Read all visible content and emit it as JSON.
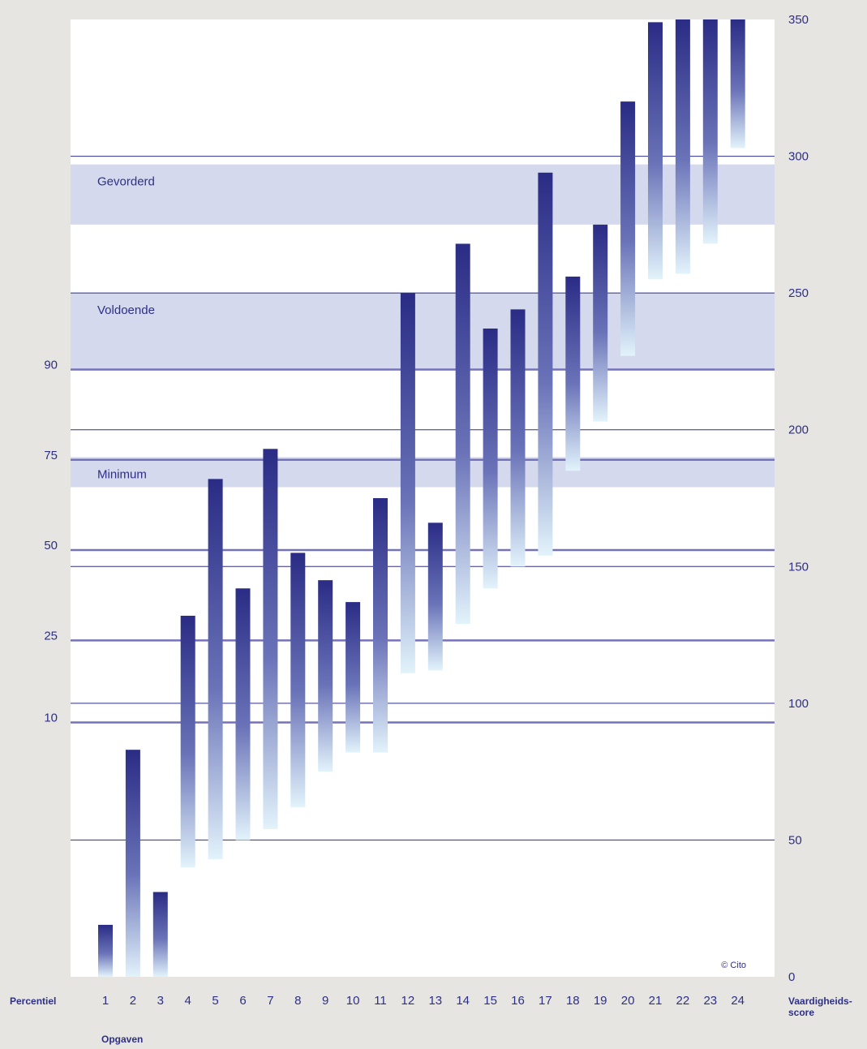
{
  "chart_data": {
    "type": "bar",
    "subtype": "floating-range",
    "categories": [
      "1",
      "2",
      "3",
      "4",
      "5",
      "6",
      "7",
      "8",
      "9",
      "10",
      "11",
      "12",
      "13",
      "14",
      "15",
      "16",
      "17",
      "18",
      "19",
      "20",
      "21",
      "22",
      "23",
      "24"
    ],
    "ranges": [
      [
        0,
        19
      ],
      [
        0,
        83
      ],
      [
        0,
        31
      ],
      [
        40,
        132
      ],
      [
        43,
        182
      ],
      [
        50,
        142
      ],
      [
        54,
        193
      ],
      [
        62,
        155
      ],
      [
        75,
        145
      ],
      [
        82,
        137
      ],
      [
        82,
        175
      ],
      [
        111,
        250
      ],
      [
        112,
        166
      ],
      [
        129,
        268
      ],
      [
        142,
        237
      ],
      [
        150,
        244
      ],
      [
        154,
        294
      ],
      [
        185,
        256
      ],
      [
        203,
        275
      ],
      [
        227,
        320
      ],
      [
        255,
        349
      ],
      [
        257,
        350
      ],
      [
        268,
        350
      ],
      [
        303,
        350
      ]
    ],
    "y_right": {
      "label_line1": "Vaardigheids-",
      "label_line2": "score",
      "range": [
        0,
        350
      ],
      "ticks": [
        0,
        50,
        100,
        150,
        200,
        250,
        300,
        350
      ]
    },
    "y_left": {
      "label": "Percentiel",
      "ticks": [
        {
          "label": "10",
          "score": 93
        },
        {
          "label": "25",
          "score": 123
        },
        {
          "label": "50",
          "score": 156
        },
        {
          "label": "75",
          "score": 189
        },
        {
          "label": "90",
          "score": 222
        }
      ]
    },
    "xlabel": "Opgaven",
    "bands": [
      {
        "label": "Gevorderd",
        "from": 275,
        "to": 297
      },
      {
        "label": "Voldoende",
        "from": 222,
        "to": 250
      },
      {
        "label": "Minimum",
        "from": 179,
        "to": 190
      }
    ],
    "grid": true,
    "copyright": "© Cito",
    "colors": {
      "background": "#e6e5e1",
      "plot": "#ffffff",
      "band": "#d4d9ee",
      "bar_top": "#2a2c85",
      "bar_mid": "#6a73b8",
      "bar_bottom": "#e2f3fb",
      "text": "#2e2f86",
      "gridline": "#2e2f86",
      "percentile_line": "#7473b9"
    }
  }
}
